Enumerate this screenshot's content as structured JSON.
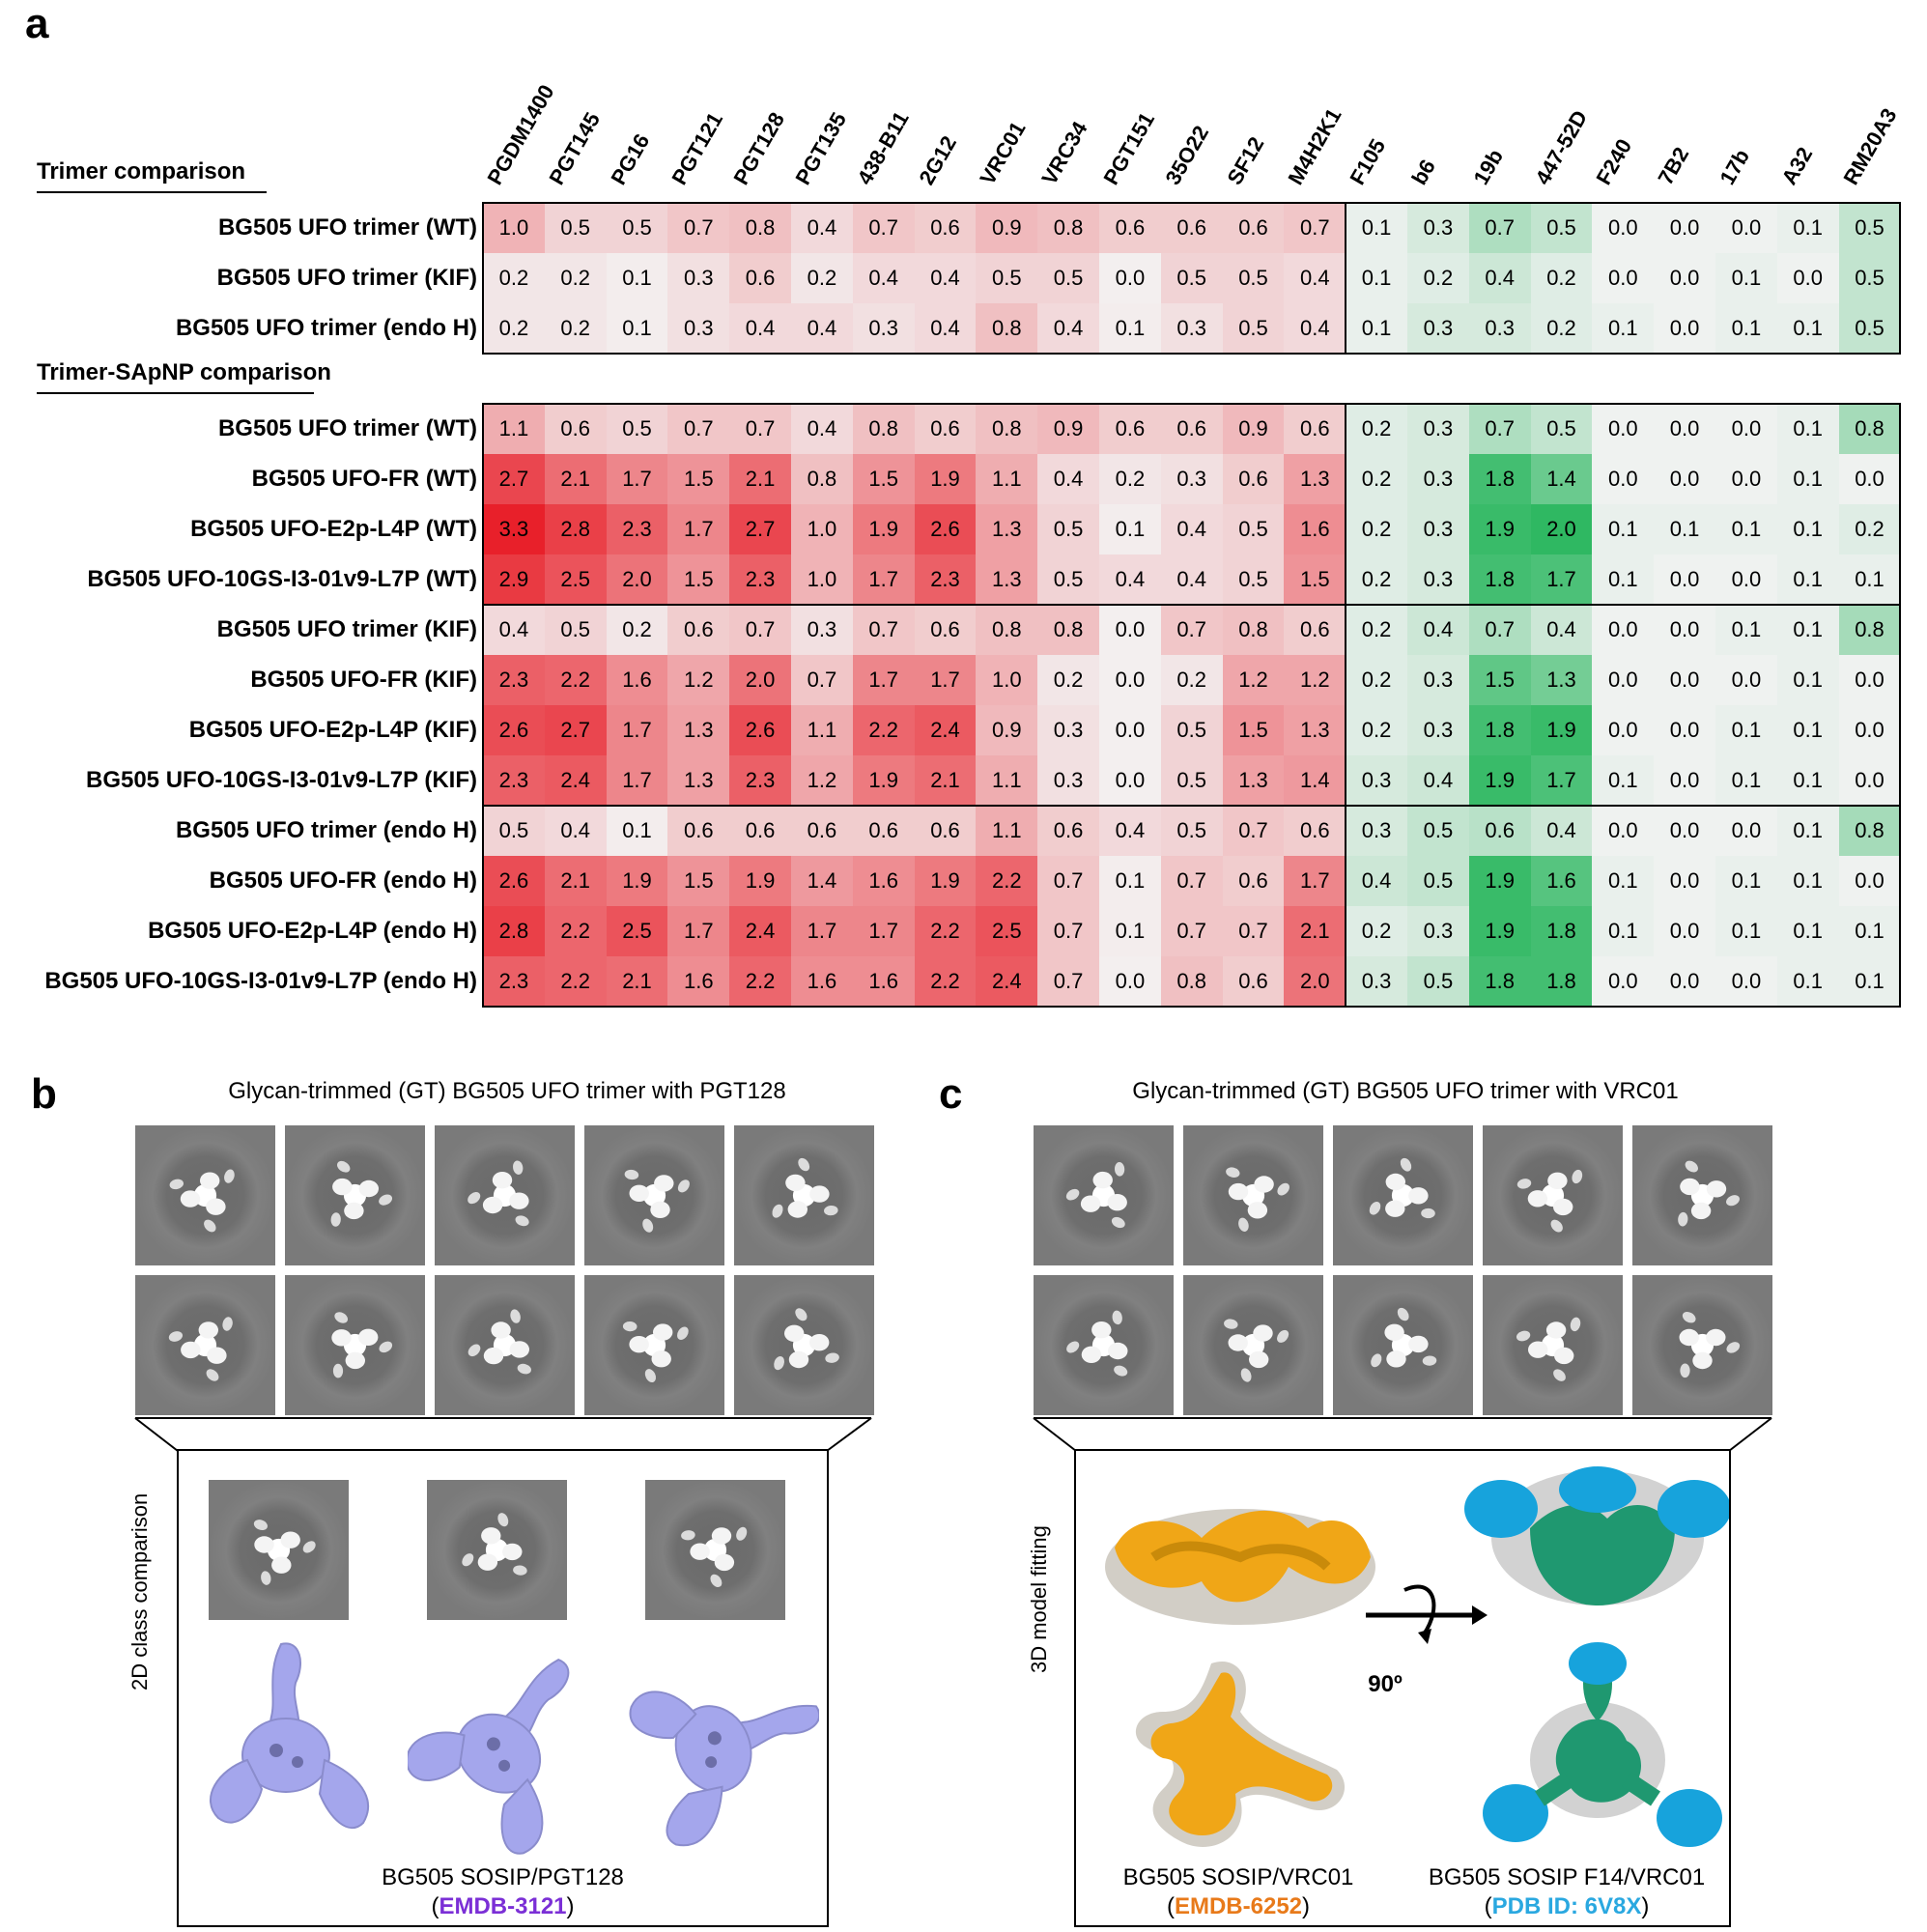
{
  "panels": {
    "a": "a",
    "b": "b",
    "c": "c"
  },
  "heatmap": {
    "columns": [
      "PGDM1400",
      "PGT145",
      "PG16",
      "PGT121",
      "PGT128",
      "PGT135",
      "438-B11",
      "2G12",
      "VRC01",
      "VRC34",
      "PGT151",
      "35O22",
      "SF12",
      "M4H2K1",
      "F105",
      "b6",
      "19b",
      "447-52D",
      "F240",
      "7B2",
      "17b",
      "A32",
      "RM20A3"
    ],
    "section1_title": "Trimer comparison",
    "section2_title": "Trimer-SApNP comparison",
    "rows_section1": [
      {
        "label": "BG505 UFO trimer (WT)",
        "values": [
          1.0,
          0.5,
          0.5,
          0.7,
          0.8,
          0.4,
          0.7,
          0.6,
          0.9,
          0.8,
          0.6,
          0.6,
          0.6,
          0.7,
          0.1,
          0.3,
          0.7,
          0.5,
          0.0,
          0.0,
          0.0,
          0.1,
          0.5
        ]
      },
      {
        "label": "BG505 UFO trimer (KIF)",
        "values": [
          0.2,
          0.2,
          0.1,
          0.3,
          0.6,
          0.2,
          0.4,
          0.4,
          0.5,
          0.5,
          0.0,
          0.5,
          0.5,
          0.4,
          0.1,
          0.2,
          0.4,
          0.2,
          0.0,
          0.0,
          0.1,
          0.0,
          0.5
        ]
      },
      {
        "label": "BG505 UFO trimer (endo H)",
        "values": [
          0.2,
          0.2,
          0.1,
          0.3,
          0.4,
          0.4,
          0.3,
          0.4,
          0.8,
          0.4,
          0.1,
          0.3,
          0.5,
          0.4,
          0.1,
          0.3,
          0.3,
          0.2,
          0.1,
          0.0,
          0.1,
          0.1,
          0.5
        ]
      }
    ],
    "rows_section2": [
      {
        "label": "BG505 UFO trimer (WT)",
        "values": [
          1.1,
          0.6,
          0.5,
          0.7,
          0.7,
          0.4,
          0.8,
          0.6,
          0.8,
          0.9,
          0.6,
          0.6,
          0.9,
          0.6,
          0.2,
          0.3,
          0.7,
          0.5,
          0.0,
          0.0,
          0.0,
          0.1,
          0.8
        ]
      },
      {
        "label": "BG505 UFO-FR (WT)",
        "values": [
          2.7,
          2.1,
          1.7,
          1.5,
          2.1,
          0.8,
          1.5,
          1.9,
          1.1,
          0.4,
          0.2,
          0.3,
          0.6,
          1.3,
          0.2,
          0.3,
          1.8,
          1.4,
          0.0,
          0.0,
          0.0,
          0.1,
          0.0
        ]
      },
      {
        "label": "BG505 UFO-E2p-L4P (WT)",
        "values": [
          3.3,
          2.8,
          2.3,
          1.7,
          2.7,
          1.0,
          1.9,
          2.6,
          1.3,
          0.5,
          0.1,
          0.4,
          0.5,
          1.6,
          0.2,
          0.3,
          1.9,
          2.0,
          0.1,
          0.1,
          0.1,
          0.1,
          0.2
        ]
      },
      {
        "label": "BG505 UFO-10GS-I3-01v9-L7P (WT)",
        "values": [
          2.9,
          2.5,
          2.0,
          1.5,
          2.3,
          1.0,
          1.7,
          2.3,
          1.3,
          0.5,
          0.4,
          0.4,
          0.5,
          1.5,
          0.2,
          0.3,
          1.8,
          1.7,
          0.1,
          0.0,
          0.0,
          0.1,
          0.1
        ]
      },
      {
        "label": "BG505 UFO trimer (KIF)",
        "values": [
          0.4,
          0.5,
          0.2,
          0.6,
          0.7,
          0.3,
          0.7,
          0.6,
          0.8,
          0.8,
          0.0,
          0.7,
          0.8,
          0.6,
          0.2,
          0.4,
          0.7,
          0.4,
          0.0,
          0.0,
          0.1,
          0.1,
          0.8
        ]
      },
      {
        "label": "BG505 UFO-FR (KIF)",
        "values": [
          2.3,
          2.2,
          1.6,
          1.2,
          2.0,
          0.7,
          1.7,
          1.7,
          1.0,
          0.2,
          0.0,
          0.2,
          1.2,
          1.2,
          0.2,
          0.3,
          1.5,
          1.3,
          0.0,
          0.0,
          0.0,
          0.1,
          0.0
        ]
      },
      {
        "label": "BG505 UFO-E2p-L4P (KIF)",
        "values": [
          2.6,
          2.7,
          1.7,
          1.3,
          2.6,
          1.1,
          2.2,
          2.4,
          0.9,
          0.3,
          0.0,
          0.5,
          1.5,
          1.3,
          0.2,
          0.3,
          1.8,
          1.9,
          0.0,
          0.0,
          0.1,
          0.1,
          0.0
        ]
      },
      {
        "label": "BG505 UFO-10GS-I3-01v9-L7P (KIF)",
        "values": [
          2.3,
          2.4,
          1.7,
          1.3,
          2.3,
          1.2,
          1.9,
          2.1,
          1.1,
          0.3,
          0.0,
          0.5,
          1.3,
          1.4,
          0.3,
          0.4,
          1.9,
          1.7,
          0.1,
          0.0,
          0.1,
          0.1,
          0.0
        ]
      },
      {
        "label": "BG505 UFO trimer (endo H)",
        "values": [
          0.5,
          0.4,
          0.1,
          0.6,
          0.6,
          0.6,
          0.6,
          0.6,
          1.1,
          0.6,
          0.4,
          0.5,
          0.7,
          0.6,
          0.3,
          0.5,
          0.6,
          0.4,
          0.0,
          0.0,
          0.0,
          0.1,
          0.8
        ]
      },
      {
        "label": "BG505 UFO-FR (endo H)",
        "values": [
          2.6,
          2.1,
          1.9,
          1.5,
          1.9,
          1.4,
          1.6,
          1.9,
          2.2,
          0.7,
          0.1,
          0.7,
          0.6,
          1.7,
          0.4,
          0.5,
          1.9,
          1.6,
          0.1,
          0.0,
          0.1,
          0.1,
          0.0
        ]
      },
      {
        "label": "BG505 UFO-E2p-L4P (endo H)",
        "values": [
          2.8,
          2.2,
          2.5,
          1.7,
          2.4,
          1.7,
          1.7,
          2.2,
          2.5,
          0.7,
          0.1,
          0.7,
          0.7,
          2.1,
          0.2,
          0.3,
          1.9,
          1.8,
          0.1,
          0.0,
          0.1,
          0.1,
          0.1
        ]
      },
      {
        "label": "BG505 UFO-10GS-I3-01v9-L7P (endo H)",
        "values": [
          2.3,
          2.2,
          2.1,
          1.6,
          2.2,
          1.6,
          1.6,
          2.2,
          2.4,
          0.7,
          0.0,
          0.8,
          0.6,
          2.0,
          0.3,
          0.5,
          1.8,
          1.8,
          0.0,
          0.0,
          0.0,
          0.1,
          0.1
        ]
      }
    ],
    "colors": {
      "red": "#e8202a",
      "green": "#2fb862"
    }
  },
  "panel_b": {
    "title": "Glycan-trimmed (GT) BG505 UFO trimer with PGT128",
    "side_label": "2D class comparison",
    "caption": "BG505 SOSIP/PGT128",
    "caption_link_open": "(",
    "caption_link": "EMDB-3121",
    "caption_link_close": ")",
    "link_color": "#7b2fd6",
    "map_color": "#a4a6ec"
  },
  "panel_c": {
    "title": "Glycan-trimmed (GT) BG505 UFO trimer with VRC01",
    "side_label": "3D model fitting",
    "rotation": "90º",
    "caption_left": "BG505 SOSIP/VRC01",
    "caption_left_link": "EMDB-6252",
    "caption_right": "BG505 SOSIP F14/VRC01",
    "caption_right_link": "PDB ID: 6V8X",
    "paren_open": "(",
    "paren_close": ")",
    "left_link_color": "#e87a1a",
    "right_link_color": "#2aa8e0"
  }
}
